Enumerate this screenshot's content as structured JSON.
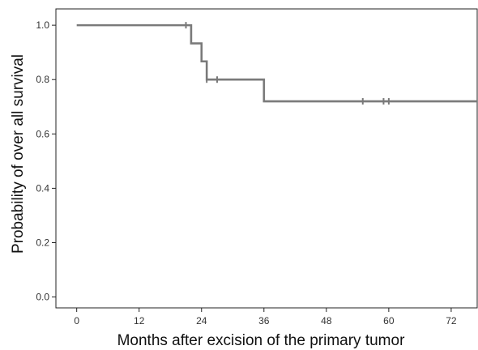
{
  "chart_data": {
    "type": "line",
    "step": true,
    "xlabel": "Months after excision of the primary tumor",
    "ylabel": "Probability of over all survival",
    "xlim": [
      -4,
      77
    ],
    "ylim": [
      -0.04,
      1.06
    ],
    "xticks": [
      0,
      12,
      24,
      36,
      48,
      60,
      72
    ],
    "yticks": [
      0.0,
      0.2,
      0.4,
      0.6,
      0.8,
      1.0
    ],
    "xtick_labels": [
      "0",
      "12",
      "24",
      "36",
      "48",
      "60",
      "72"
    ],
    "ytick_labels": [
      "0.0",
      "0.2",
      "0.4",
      "0.6",
      "0.8",
      "1.0"
    ],
    "grid": false,
    "line_color": "#7a7a7a",
    "series": [
      {
        "steps": [
          {
            "x": 0,
            "y": 1.0
          },
          {
            "x": 22,
            "y": 0.933
          },
          {
            "x": 24,
            "y": 0.867
          },
          {
            "x": 25,
            "y": 0.8
          },
          {
            "x": 36,
            "y": 0.72
          }
        ],
        "x_end": 77,
        "censored": [
          {
            "x": 21,
            "y": 1.0
          },
          {
            "x": 25,
            "y": 0.8
          },
          {
            "x": 27,
            "y": 0.8
          },
          {
            "x": 55,
            "y": 0.72
          },
          {
            "x": 59,
            "y": 0.72
          },
          {
            "x": 60,
            "y": 0.72
          }
        ]
      }
    ]
  }
}
